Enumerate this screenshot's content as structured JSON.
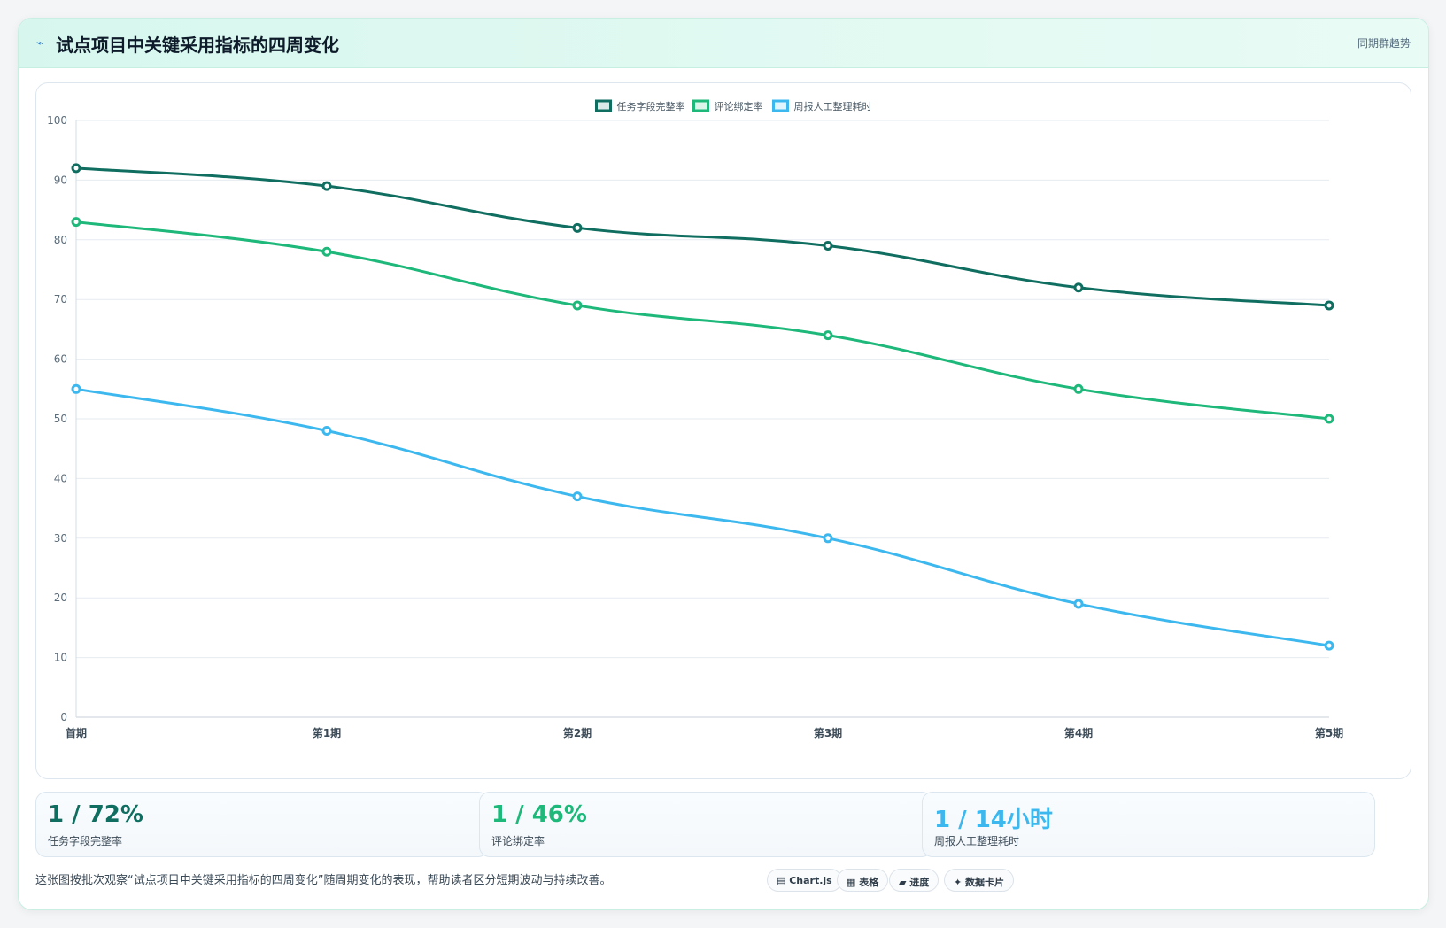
{
  "header": {
    "icon": "sparkline-icon",
    "title": "试点项目中关键采用指标的四周变化",
    "tag": "同期群趋势"
  },
  "chart_data": {
    "type": "line",
    "categories": [
      "首期",
      "第1期",
      "第2期",
      "第3期",
      "第4期",
      "第5期"
    ],
    "series": [
      {
        "name": "任务字段完整率",
        "values": [
          92,
          89,
          82,
          79,
          72,
          69
        ],
        "color": "#0f6e60"
      },
      {
        "name": "评论绑定率",
        "values": [
          83,
          78,
          69,
          64,
          55,
          50
        ],
        "color": "#1db87a"
      },
      {
        "name": "周报人工整理耗时",
        "values": [
          55,
          48,
          37,
          30,
          19,
          12
        ],
        "color": "#3db8ef"
      }
    ],
    "ylim": [
      0,
      100
    ],
    "yticks": [
      0,
      10,
      20,
      30,
      40,
      50,
      60,
      70,
      80,
      90,
      100
    ],
    "legend": "top-center",
    "grid": true
  },
  "stats": [
    {
      "value": "1 / 72%",
      "label": "任务字段完整率",
      "color": "#0f6e60"
    },
    {
      "value": "1 / 46%",
      "label": "评论绑定率",
      "color": "#1db87a"
    },
    {
      "value": "1 / 14小时",
      "label": "周报人工整理耗时",
      "color": "#3db8ef"
    }
  ],
  "footer": {
    "text": "这张图按批次观察“试点项目中关键采用指标的四周变化”随周期变化的表现，帮助读者区分短期波动与持续改善。",
    "pills": [
      "▤ Chart.js",
      "▦ 表格",
      "▰ 进度",
      "✦ 数据卡片"
    ]
  }
}
